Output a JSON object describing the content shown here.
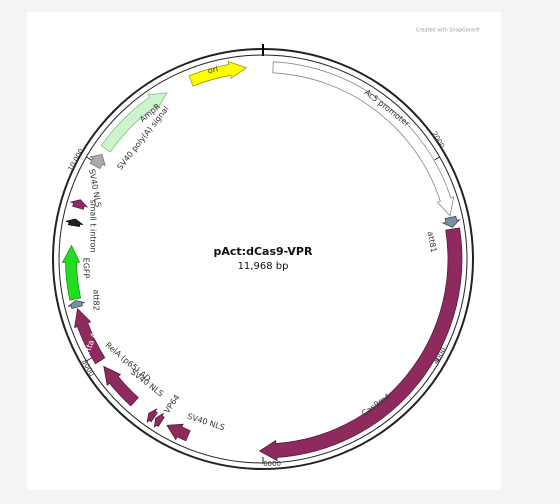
{
  "watermark": "Created with SnapGene®",
  "map": {
    "name": "pAct:dCas9-VPR",
    "length": "11,968 bp",
    "position_labels": [
      "2000",
      "4000",
      "6000",
      "8000",
      "10,000"
    ],
    "features": [
      {
        "label": "ori"
      },
      {
        "label": "Ac5 promoter"
      },
      {
        "label": "att81"
      },
      {
        "label": "Cas9m4"
      },
      {
        "label": "SV40 NLS"
      },
      {
        "label": "VP64"
      },
      {
        "label": "SV40 NLS"
      },
      {
        "label": "RelA (p65) AD"
      },
      {
        "label": "Rta AD"
      },
      {
        "label": "att82"
      },
      {
        "label": "EGFP"
      },
      {
        "label": "small t intron"
      },
      {
        "label": "SV40 NLS"
      },
      {
        "label": "SV40 poly(A) signal"
      },
      {
        "label": "AmpR"
      }
    ]
  }
}
